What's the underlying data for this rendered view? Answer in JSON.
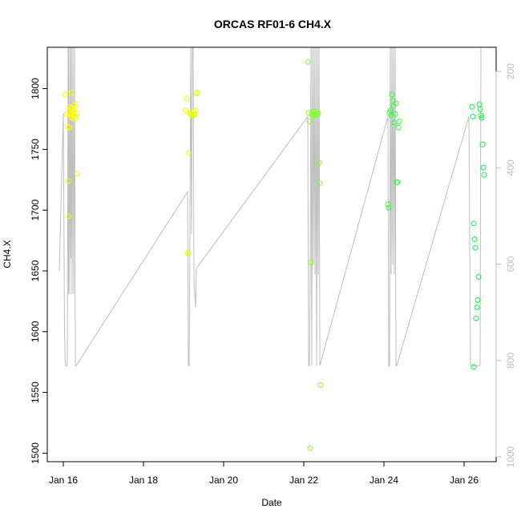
{
  "chart_data": {
    "type": "scatter",
    "title": "ORCAS RF01-6 CH4.X",
    "xlabel": "Date",
    "ylabel": "CH4.X",
    "x_ticks": [
      {
        "value": 15.5,
        "label": "Jan 16"
      },
      {
        "value": 17.5,
        "label": "Jan 18"
      },
      {
        "value": 19.5,
        "label": "Jan 20"
      },
      {
        "value": 21.5,
        "label": "Jan 22"
      },
      {
        "value": 23.5,
        "label": "Jan 24"
      },
      {
        "value": 25.5,
        "label": "Jan 26"
      }
    ],
    "xlim": [
      15.1,
      26.3
    ],
    "ylim": [
      1493,
      1834
    ],
    "y_ticks": [
      1500,
      1550,
      1600,
      1650,
      1700,
      1750,
      1800
    ],
    "y2_ticks": [
      200,
      400,
      600,
      800,
      1000
    ],
    "y2lim": [
      1010,
      150
    ],
    "grid": false,
    "colors": {
      "line": "#bebebe",
      "axis": "#000000",
      "secondary_axis": "#bebebe",
      "points": [
        "#ffff00",
        "#e6ff00",
        "#b3ff1a",
        "#80ff33",
        "#33ff33",
        "#00ff40"
      ]
    },
    "series": [
      {
        "role": "ch4",
        "points": [
          [
            15.55,
            1795
          ],
          [
            15.58,
            1779
          ],
          [
            15.6,
            1769
          ],
          [
            15.62,
            1724
          ],
          [
            15.63,
            1695
          ],
          [
            15.65,
            1768
          ],
          [
            15.66,
            1781
          ],
          [
            15.67,
            1785
          ],
          [
            15.68,
            1779
          ],
          [
            15.69,
            1777
          ],
          [
            15.7,
            1783
          ],
          [
            15.7,
            1797
          ],
          [
            15.71,
            1776
          ],
          [
            15.72,
            1780
          ],
          [
            15.73,
            1784
          ],
          [
            15.74,
            1778
          ],
          [
            15.75,
            1781
          ],
          [
            15.76,
            1786
          ],
          [
            15.77,
            1779
          ],
          [
            15.78,
            1782
          ],
          [
            15.79,
            1777
          ],
          [
            15.8,
            1775
          ],
          [
            15.82,
            1787
          ],
          [
            15.84,
            1780
          ],
          [
            15.85,
            1730
          ],
          [
            18.55,
            1782
          ],
          [
            18.58,
            1792
          ],
          [
            18.6,
            1665
          ],
          [
            18.62,
            1664
          ],
          [
            18.64,
            1747
          ],
          [
            18.66,
            1780
          ],
          [
            18.68,
            1779
          ],
          [
            18.7,
            1778
          ],
          [
            18.72,
            1780
          ],
          [
            18.74,
            1781
          ],
          [
            18.76,
            1778
          ],
          [
            18.78,
            1779
          ],
          [
            18.8,
            1782
          ],
          [
            18.82,
            1796
          ],
          [
            18.84,
            1797
          ],
          [
            21.6,
            1822
          ],
          [
            21.62,
            1780
          ],
          [
            21.64,
            1773
          ],
          [
            21.66,
            1504
          ],
          [
            21.68,
            1657
          ],
          [
            21.7,
            1779
          ],
          [
            21.72,
            1781
          ],
          [
            21.74,
            1778
          ],
          [
            21.76,
            1780
          ],
          [
            21.78,
            1779
          ],
          [
            21.8,
            1781
          ],
          [
            21.82,
            1778
          ],
          [
            21.84,
            1779
          ],
          [
            21.86,
            1780
          ],
          [
            21.88,
            1739
          ],
          [
            21.9,
            1722
          ],
          [
            21.92,
            1556
          ],
          [
            23.6,
            1705
          ],
          [
            23.62,
            1702
          ],
          [
            23.64,
            1780
          ],
          [
            23.66,
            1782
          ],
          [
            23.68,
            1778
          ],
          [
            23.7,
            1795
          ],
          [
            23.72,
            1790
          ],
          [
            23.74,
            1786
          ],
          [
            23.76,
            1772
          ],
          [
            23.78,
            1779
          ],
          [
            23.8,
            1788
          ],
          [
            23.82,
            1723
          ],
          [
            23.84,
            1723
          ],
          [
            23.86,
            1768
          ],
          [
            23.88,
            1773
          ],
          [
            25.7,
            1785
          ],
          [
            25.72,
            1777
          ],
          [
            25.74,
            1689
          ],
          [
            25.76,
            1676
          ],
          [
            25.78,
            1669
          ],
          [
            25.8,
            1611
          ],
          [
            25.82,
            1620
          ],
          [
            25.84,
            1626
          ],
          [
            25.86,
            1645
          ],
          [
            25.88,
            1787
          ],
          [
            25.9,
            1783
          ],
          [
            25.92,
            1778
          ],
          [
            25.94,
            1776
          ],
          [
            25.96,
            1754
          ],
          [
            25.98,
            1735
          ],
          [
            26.0,
            1729
          ],
          [
            25.74,
            1571
          ]
        ]
      }
    ],
    "trace": {
      "role": "altitude",
      "points": [
        [
          15.4,
          1650
        ],
        [
          15.5,
          1780
        ],
        [
          15.53,
          1600
        ],
        [
          15.55,
          1572
        ],
        [
          15.6,
          1572
        ],
        [
          15.62,
          1834
        ],
        [
          15.63,
          1631
        ],
        [
          15.64,
          1834
        ],
        [
          15.66,
          1631
        ],
        [
          15.68,
          1834
        ],
        [
          15.69,
          1660
        ],
        [
          15.7,
          1834
        ],
        [
          15.72,
          1631
        ],
        [
          15.74,
          1834
        ],
        [
          15.76,
          1631
        ],
        [
          15.78,
          1834
        ],
        [
          15.8,
          1572
        ],
        [
          15.82,
          1572
        ],
        [
          18.6,
          1715
        ],
        [
          18.62,
          1572
        ],
        [
          18.64,
          1572
        ],
        [
          18.66,
          1690
        ],
        [
          18.68,
          1834
        ],
        [
          18.7,
          1680
        ],
        [
          18.72,
          1834
        ],
        [
          18.74,
          1834
        ],
        [
          18.76,
          1640
        ],
        [
          18.8,
          1620
        ],
        [
          18.82,
          1652
        ],
        [
          21.6,
          1777
        ],
        [
          21.62,
          1572
        ],
        [
          21.64,
          1572
        ],
        [
          21.66,
          1647
        ],
        [
          21.68,
          1834
        ],
        [
          21.7,
          1572
        ],
        [
          21.72,
          1834
        ],
        [
          21.74,
          1655
        ],
        [
          21.76,
          1834
        ],
        [
          21.78,
          1647
        ],
        [
          21.8,
          1834
        ],
        [
          21.82,
          1572
        ],
        [
          21.84,
          1834
        ],
        [
          21.86,
          1647
        ],
        [
          21.88,
          1834
        ],
        [
          21.9,
          1572
        ],
        [
          23.6,
          1777
        ],
        [
          23.62,
          1572
        ],
        [
          23.64,
          1572
        ],
        [
          23.66,
          1834
        ],
        [
          23.68,
          1647
        ],
        [
          23.7,
          1834
        ],
        [
          23.72,
          1655
        ],
        [
          23.74,
          1834
        ],
        [
          23.76,
          1647
        ],
        [
          23.78,
          1834
        ],
        [
          23.8,
          1572
        ],
        [
          23.82,
          1572
        ],
        [
          25.62,
          1777
        ],
        [
          25.66,
          1572
        ],
        [
          25.68,
          1572
        ],
        [
          25.9,
          1572
        ],
        [
          25.92,
          1834
        ]
      ]
    }
  }
}
